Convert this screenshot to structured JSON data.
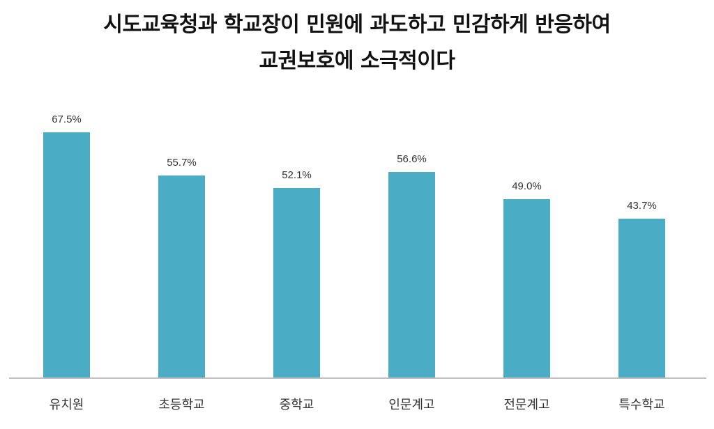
{
  "title": {
    "line1": "시도교육청과 학교장이 민원에 과도하고 민감하게 반응하여",
    "line2": "교권보호에 소극적이다"
  },
  "colors": {
    "bar": "#4bacc6",
    "axis": "#bfbfbf"
  },
  "bars": [
    {
      "label": "유치원",
      "value": 67.5,
      "display": "67.5%"
    },
    {
      "label": "초등학교",
      "value": 55.7,
      "display": "55.7%"
    },
    {
      "label": "중학교",
      "value": 52.1,
      "display": "52.1%"
    },
    {
      "label": "인문계고",
      "value": 56.6,
      "display": "56.6%"
    },
    {
      "label": "전문계고",
      "value": 49.0,
      "display": "49.0%"
    },
    {
      "label": "특수학교",
      "value": 43.7,
      "display": "43.7%"
    }
  ],
  "chart_data": {
    "type": "bar",
    "title": "시도교육청과 학교장이 민원에 과도하고 민감하게 반응하여 교권보호에 소극적이다",
    "categories": [
      "유치원",
      "초등학교",
      "중학교",
      "인문계고",
      "전문계고",
      "특수학교"
    ],
    "values": [
      67.5,
      55.7,
      52.1,
      56.6,
      49.0,
      43.7
    ],
    "value_labels": [
      "67.5%",
      "55.7%",
      "52.1%",
      "56.6%",
      "49.0%",
      "43.7%"
    ],
    "xlabel": "",
    "ylabel": "",
    "unit": "%",
    "grid": false,
    "legend": "none",
    "y_axis_visible": false
  }
}
